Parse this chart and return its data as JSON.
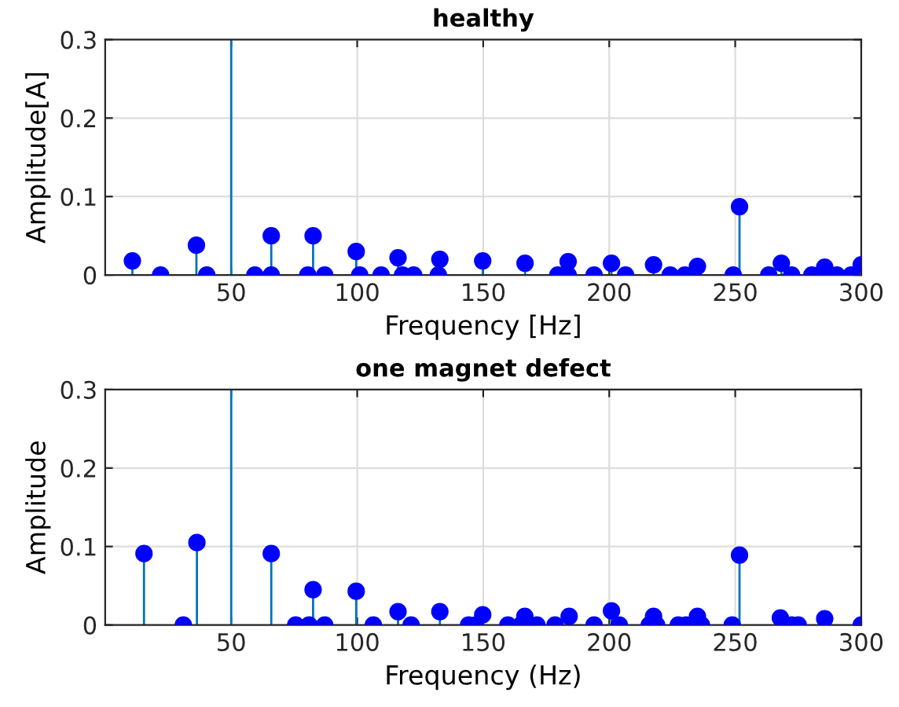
{
  "chart_data": [
    {
      "type": "lollipop",
      "title": "healthy",
      "xlabel": "Frequency [Hz]",
      "ylabel": "Amplitude[A]",
      "xlim": [
        0,
        300
      ],
      "xticks": [
        50,
        100,
        150,
        200,
        250,
        300
      ],
      "ylim": [
        0,
        0.3
      ],
      "yticks": [
        0,
        0.1,
        0.2,
        0.3
      ],
      "grid": true,
      "marker": "circle",
      "ref_lines": [
        {
          "axis": "x",
          "value": 50,
          "color": "#0072bd"
        }
      ],
      "series": [
        {
          "color": "#0000ff",
          "x": [
            10.8,
            22,
            36.2,
            40.3,
            59.4,
            65.9,
            65.9,
            80.4,
            82.5,
            87.1,
            99.6,
            101,
            109.5,
            116.2,
            118,
            122.4,
            132.2,
            132.8,
            149.8,
            166.6,
            179.6,
            183.7,
            183.7,
            194,
            200.9,
            206.5,
            217.6,
            224.2,
            230,
            235,
            249.2,
            251.7,
            263.3,
            268.3,
            272.4,
            280.4,
            285.5,
            290.3,
            296,
            300
          ],
          "values": [
            0.018,
            0,
            0.038,
            0,
            0,
            0,
            0.05,
            0,
            0.05,
            0,
            0.03,
            0,
            0,
            0.022,
            0,
            0,
            0,
            0.02,
            0.018,
            0.015,
            0,
            0,
            0.017,
            0,
            0.015,
            0,
            0.013,
            0,
            0,
            0.011,
            0,
            0.087,
            0,
            0.015,
            0,
            0,
            0.01,
            0,
            0,
            0.013
          ]
        }
      ]
    },
    {
      "type": "lollipop",
      "title": "one magnet defect",
      "xlabel": "Frequency (Hz)",
      "ylabel": "Amplitude",
      "xlim": [
        0,
        300
      ],
      "xticks": [
        50,
        100,
        150,
        200,
        250,
        300
      ],
      "ylim": [
        0,
        0.3
      ],
      "yticks": [
        0,
        0.1,
        0.2,
        0.3
      ],
      "grid": true,
      "marker": "circle",
      "ref_lines": [
        {
          "axis": "x",
          "value": 50,
          "color": "#0072bd"
        }
      ],
      "series": [
        {
          "color": "#0000ff",
          "x": [
            15.4,
            31,
            36.4,
            65.9,
            75.6,
            80.9,
            82.5,
            87.1,
            99.6,
            106.4,
            116.2,
            121.4,
            132.8,
            144.2,
            147,
            149.8,
            159.8,
            165,
            166.5,
            171.3,
            178.5,
            184.1,
            194,
            200.9,
            204,
            215.9,
            217.6,
            218.8,
            227.4,
            230.5,
            235,
            236.6,
            248.8,
            251.7,
            267.9,
            272.4,
            275,
            285.5,
            300
          ],
          "values": [
            0.091,
            0,
            0.105,
            0.091,
            0,
            0,
            0.045,
            0,
            0.043,
            0,
            0.017,
            0,
            0.017,
            0,
            0,
            0.013,
            0,
            0,
            0.011,
            0,
            0,
            0.011,
            0,
            0.018,
            0,
            0,
            0.011,
            0,
            0,
            0,
            0.011,
            0,
            0,
            0.089,
            0.009,
            0,
            0,
            0.008,
            0
          ]
        }
      ]
    }
  ]
}
